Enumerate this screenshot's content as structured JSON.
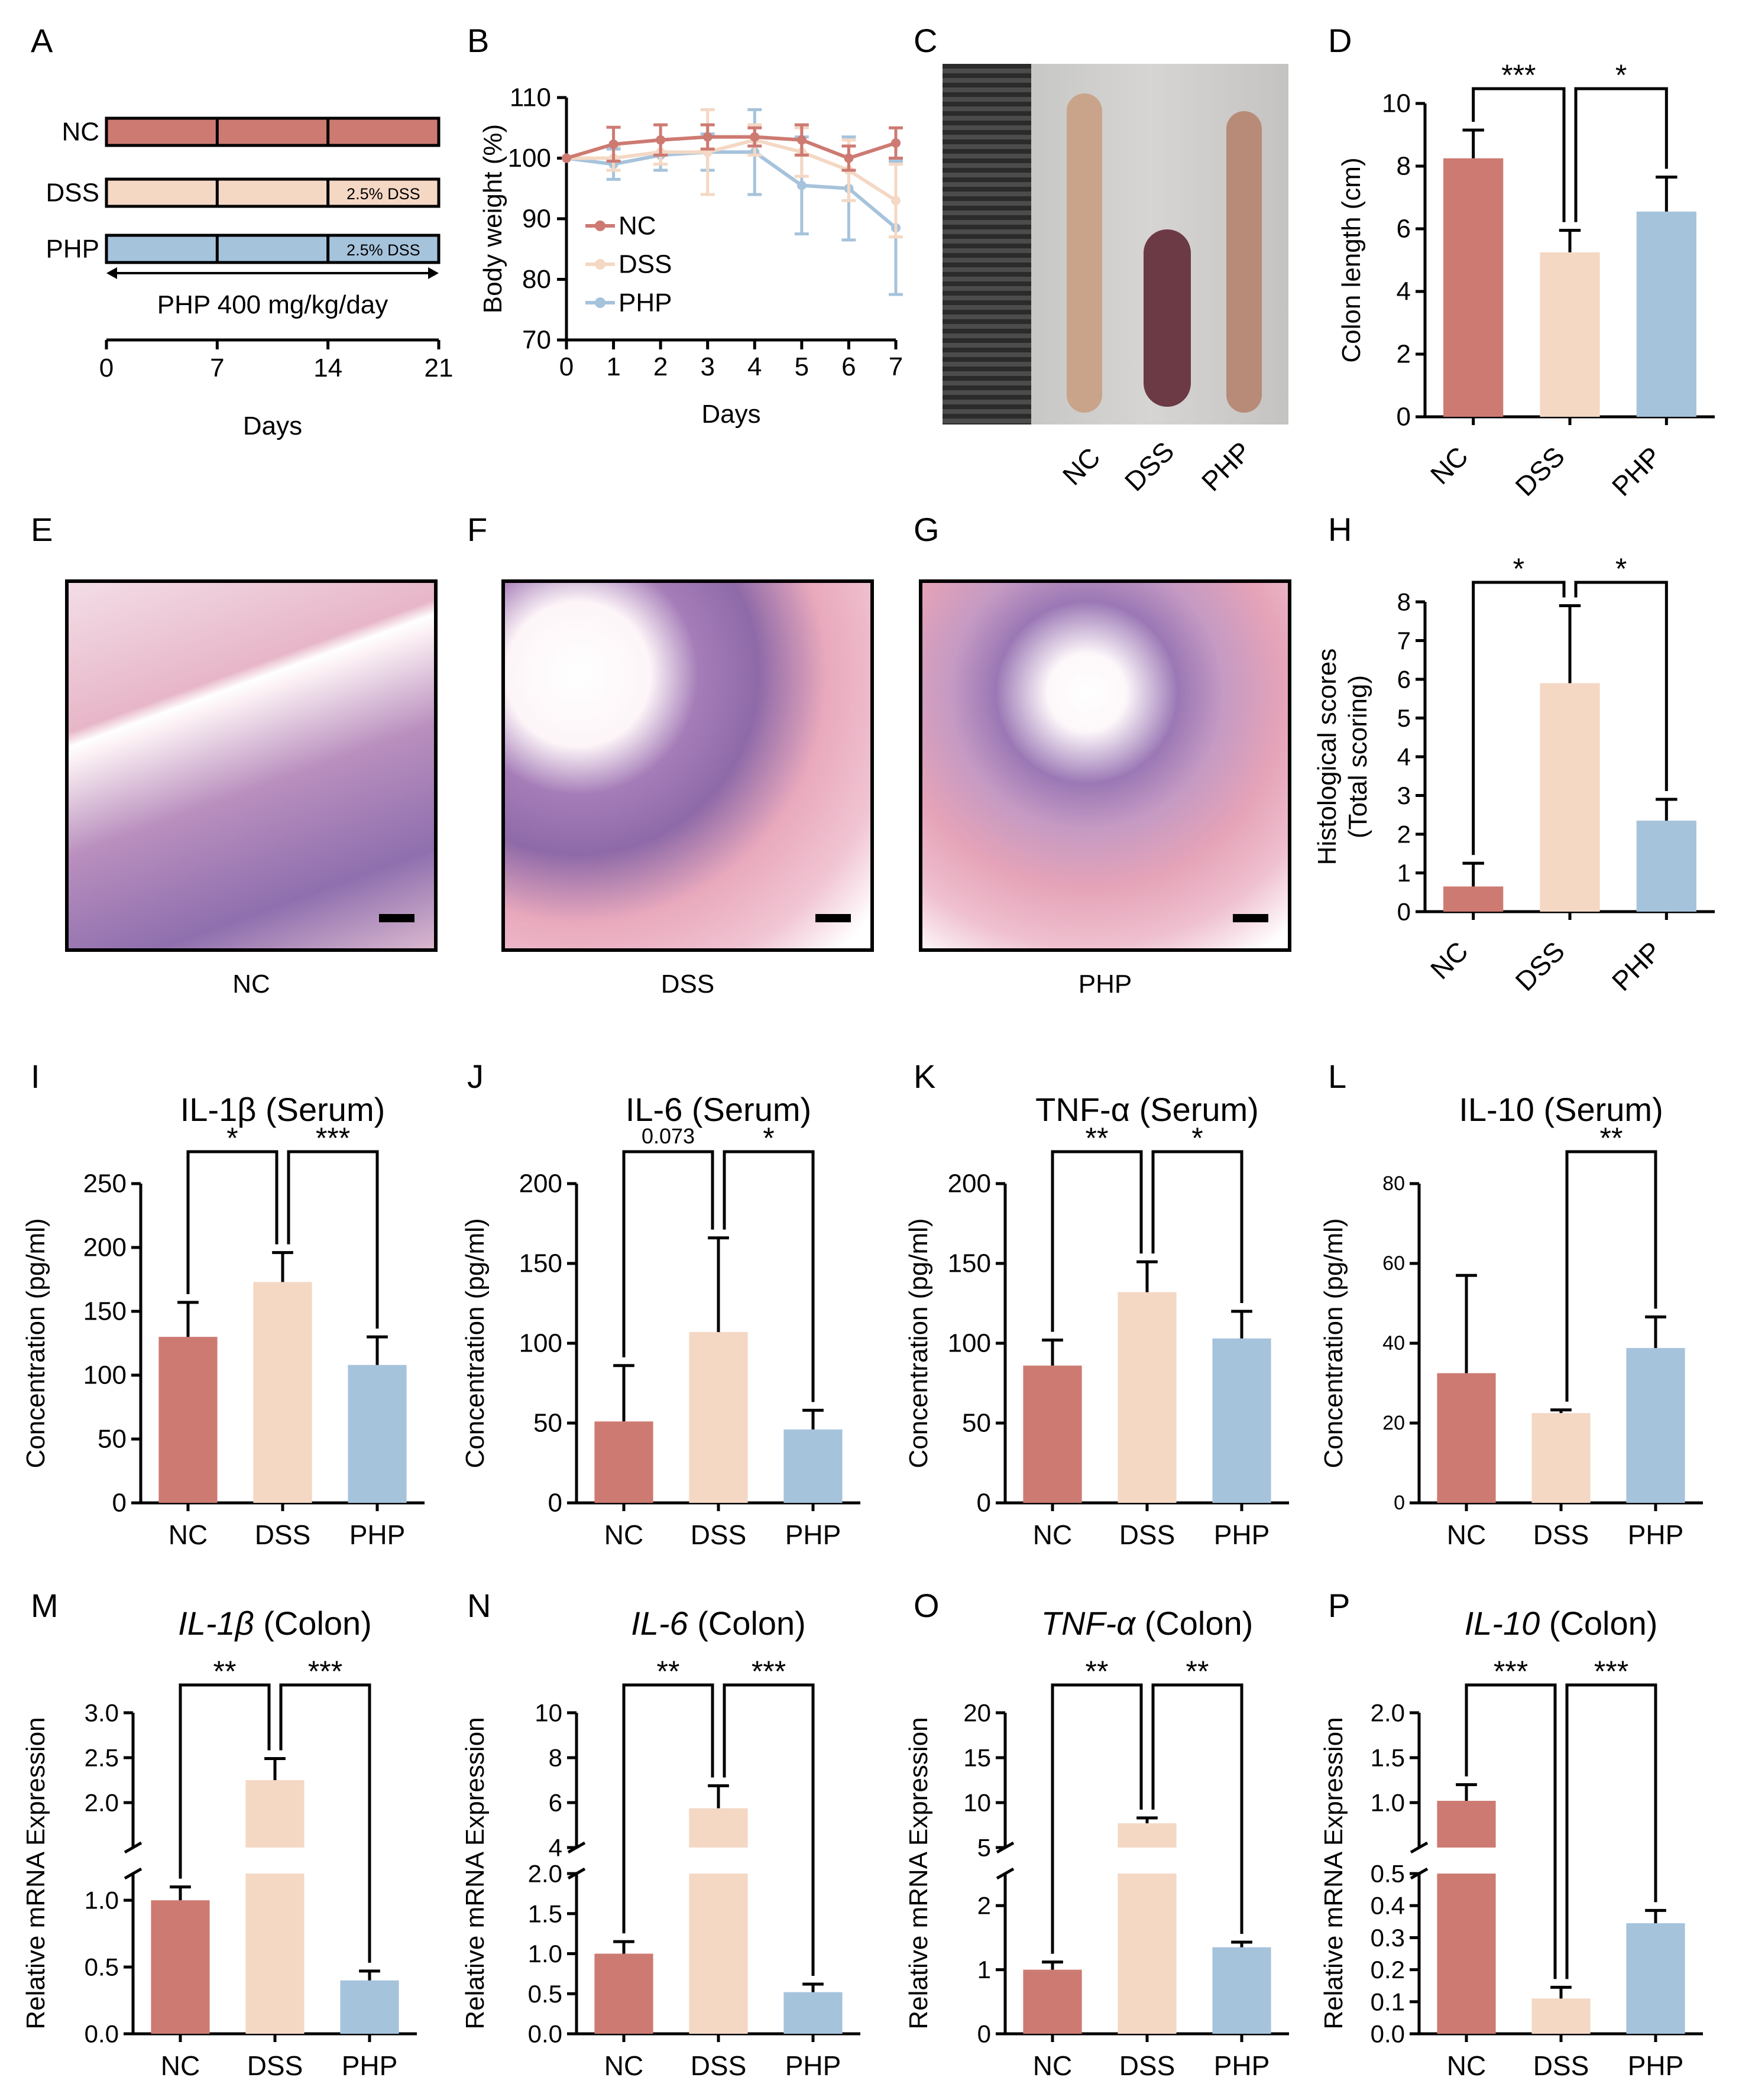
{
  "colors": {
    "NC": "#cd7a72",
    "DSS": "#f4d8c4",
    "PHP": "#a6c3dc",
    "ink": "#000000"
  },
  "panels": {
    "A": {
      "letter": "A",
      "groups": [
        "NC",
        "DSS",
        "PHP"
      ],
      "bar_labels": {
        "DSS": "2.5% DSS",
        "PHP": "2.5% DSS"
      },
      "treatment": "PHP 400 mg/kg/day",
      "ticks": [
        "0",
        "7",
        "14",
        "21"
      ],
      "xlabel": "Days"
    },
    "C": {
      "letter": "C",
      "labels": [
        "NC",
        "DSS",
        "PHP"
      ]
    },
    "E": {
      "letter": "E",
      "label": "NC"
    },
    "F": {
      "letter": "F",
      "label": "DSS"
    },
    "G": {
      "letter": "G",
      "label": "PHP"
    }
  },
  "chart_data": [
    {
      "panel": "B",
      "type": "line",
      "x": [
        0,
        1,
        2,
        3,
        4,
        5,
        6,
        7
      ],
      "xlim": [
        0,
        7
      ],
      "ylim": [
        70,
        110
      ],
      "xticks": [
        "0",
        "1",
        "2",
        "3",
        "4",
        "5",
        "6",
        "7"
      ],
      "yticks": [
        "70",
        "80",
        "90",
        "100",
        "110"
      ],
      "xlabel": "Days",
      "ylabel": "Body weight (%)",
      "legend": "center-left",
      "series": [
        {
          "name": "NC",
          "values": [
            100,
            102.3,
            103,
            103.5,
            103.5,
            103,
            100,
            102.5
          ],
          "err": [
            0,
            2.8,
            2.5,
            2,
            1.5,
            2.5,
            2,
            2.5
          ]
        },
        {
          "name": "DSS",
          "values": [
            100,
            100,
            101,
            101,
            103,
            101,
            98,
            93
          ],
          "err": [
            0,
            2,
            2,
            7,
            2.5,
            4,
            5,
            6
          ]
        },
        {
          "name": "PHP",
          "values": [
            100,
            99,
            100.5,
            101,
            101,
            95.5,
            95,
            88.5
          ],
          "err": [
            0,
            2.5,
            2.5,
            3,
            7,
            8,
            8.5,
            11
          ]
        }
      ]
    },
    {
      "panel": "D",
      "type": "bar",
      "categories": [
        "NC",
        "DSS",
        "PHP"
      ],
      "values": [
        8.25,
        5.25,
        6.55
      ],
      "err": [
        0.9,
        0.7,
        1.1
      ],
      "ylim": [
        0,
        10
      ],
      "yticks": [
        "0",
        "2",
        "4",
        "6",
        "8",
        "10"
      ],
      "ylabel": "Colon length (cm)",
      "xlabel_rotated": true,
      "sig": [
        {
          "a": 0,
          "b": 1,
          "label": "***"
        },
        {
          "a": 1,
          "b": 2,
          "label": "*"
        }
      ]
    },
    {
      "panel": "H",
      "type": "bar",
      "categories": [
        "NC",
        "DSS",
        "PHP"
      ],
      "values": [
        0.65,
        5.9,
        2.35
      ],
      "err": [
        0.6,
        2.0,
        0.55
      ],
      "ylim": [
        0,
        8
      ],
      "yticks": [
        "0",
        "1",
        "2",
        "3",
        "4",
        "5",
        "6",
        "7",
        "8"
      ],
      "ylabel": "Histological scores",
      "ylabel2": "(Total scoring)",
      "xlabel_rotated": true,
      "sig": [
        {
          "a": 0,
          "b": 1,
          "label": "*"
        },
        {
          "a": 1,
          "b": 2,
          "label": "*"
        }
      ]
    },
    {
      "panel": "I",
      "type": "bar",
      "title": "IL-1β (Serum)",
      "categories": [
        "NC",
        "DSS",
        "PHP"
      ],
      "values": [
        130,
        173,
        108
      ],
      "err": [
        27,
        23,
        22
      ],
      "ylim": [
        0,
        250
      ],
      "yticks": [
        "0",
        "50",
        "100",
        "150",
        "200",
        "250"
      ],
      "ylabel": "Concentration (pg/ml)",
      "sig": [
        {
          "a": 0,
          "b": 1,
          "label": "*"
        },
        {
          "a": 1,
          "b": 2,
          "label": "***"
        }
      ]
    },
    {
      "panel": "J",
      "type": "bar",
      "title": "IL-6 (Serum)",
      "categories": [
        "NC",
        "DSS",
        "PHP"
      ],
      "values": [
        51,
        107,
        46
      ],
      "err": [
        35,
        59,
        12
      ],
      "ylim": [
        0,
        200
      ],
      "yticks": [
        "0",
        "50",
        "100",
        "150",
        "200"
      ],
      "ylabel": "Concentration (pg/ml)",
      "sig": [
        {
          "a": 0,
          "b": 1,
          "label": "0.073"
        },
        {
          "a": 1,
          "b": 2,
          "label": "*"
        }
      ]
    },
    {
      "panel": "K",
      "type": "bar",
      "title": "TNF-α (Serum)",
      "categories": [
        "NC",
        "DSS",
        "PHP"
      ],
      "values": [
        86,
        132,
        103
      ],
      "err": [
        16,
        19,
        17
      ],
      "ylim": [
        0,
        200
      ],
      "yticks": [
        "0",
        "50",
        "100",
        "150",
        "200"
      ],
      "ylabel": "Concentration (pg/ml)",
      "sig": [
        {
          "a": 0,
          "b": 1,
          "label": "**"
        },
        {
          "a": 1,
          "b": 2,
          "label": "*"
        }
      ]
    },
    {
      "panel": "L",
      "type": "bar",
      "title": "IL-10 (Serum)",
      "categories": [
        "NC",
        "DSS",
        "PHP"
      ],
      "values": [
        32.5,
        22.5,
        38.8
      ],
      "err": [
        24.5,
        0.8,
        7.8
      ],
      "ylim": [
        0,
        80
      ],
      "yticks": [
        "0",
        "20",
        "40",
        "60",
        "80"
      ],
      "ylabel": "Concentration (pg/ml)",
      "sig": [
        {
          "a": 1,
          "b": 2,
          "label": "**"
        }
      ]
    },
    {
      "panel": "M",
      "type": "bar",
      "title_i": "IL-1β",
      "title_r": " (Colon)",
      "categories": [
        "NC",
        "DSS",
        "PHP"
      ],
      "values": [
        1.0,
        2.25,
        0.4
      ],
      "err": [
        0.1,
        0.24,
        0.07
      ],
      "ylim": [
        0,
        3.0
      ],
      "axis_break": [
        1.2,
        1.5
      ],
      "yticks_low": [
        "0.0",
        "0.5",
        "1.0"
      ],
      "yticks_high": [
        "2.0",
        "2.5",
        "3.0"
      ],
      "ylabel": "Relative mRNA Expression",
      "sig": [
        {
          "a": 0,
          "b": 1,
          "label": "**"
        },
        {
          "a": 1,
          "b": 2,
          "label": "***"
        }
      ]
    },
    {
      "panel": "N",
      "type": "bar",
      "title_i": "IL-6",
      "title_r": " (Colon)",
      "categories": [
        "NC",
        "DSS",
        "PHP"
      ],
      "values": [
        1.0,
        5.75,
        0.52
      ],
      "err": [
        0.15,
        1.0,
        0.1
      ],
      "ylim": [
        0,
        10
      ],
      "axis_break": [
        2,
        4
      ],
      "yticks_low": [
        "0.0",
        "0.5",
        "1.0",
        "1.5",
        "2.0"
      ],
      "yticks_high": [
        "4",
        "6",
        "8",
        "10"
      ],
      "ylabel": "Relative mRNA Expression",
      "sig": [
        {
          "a": 0,
          "b": 1,
          "label": "**"
        },
        {
          "a": 1,
          "b": 2,
          "label": "***"
        }
      ]
    },
    {
      "panel": "O",
      "type": "bar",
      "title_i": "TNF-α",
      "title_r": " (Colon)",
      "categories": [
        "NC",
        "DSS",
        "PHP"
      ],
      "values": [
        1.0,
        7.7,
        1.35
      ],
      "err": [
        0.12,
        0.6,
        0.08
      ],
      "ylim": [
        0,
        20
      ],
      "axis_break": [
        2.5,
        5
      ],
      "yticks_low": [
        "0",
        "1",
        "2"
      ],
      "yticks_high": [
        "5",
        "10",
        "15",
        "20"
      ],
      "ylabel": "Relative mRNA Expression",
      "sig": [
        {
          "a": 0,
          "b": 1,
          "label": "**"
        },
        {
          "a": 1,
          "b": 2,
          "label": "**"
        }
      ]
    },
    {
      "panel": "P",
      "type": "bar",
      "title_i": "IL-10",
      "title_r": " (Colon)",
      "categories": [
        "NC",
        "DSS",
        "PHP"
      ],
      "values": [
        1.02,
        0.11,
        0.345
      ],
      "err": [
        0.18,
        0.035,
        0.04
      ],
      "ylim": [
        0,
        2.0
      ],
      "axis_break": [
        0.5,
        0.5
      ],
      "yticks_low": [
        "0.0",
        "0.1",
        "0.2",
        "0.3",
        "0.4",
        "0.5"
      ],
      "yticks_high": [
        "1.0",
        "1.5",
        "2.0"
      ],
      "ylabel": "Relative mRNA Expression",
      "sig": [
        {
          "a": 0,
          "b": 1,
          "label": "***"
        },
        {
          "a": 1,
          "b": 2,
          "label": "***"
        }
      ]
    }
  ]
}
